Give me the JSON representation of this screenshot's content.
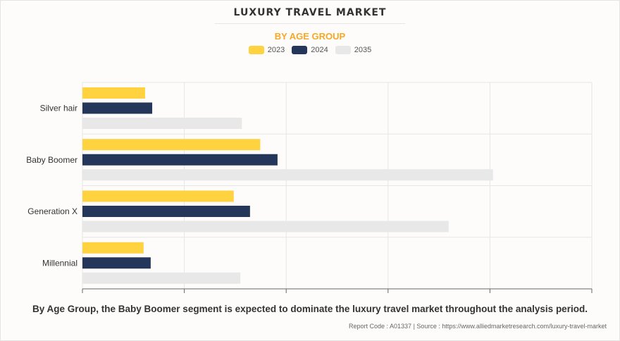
{
  "chart_data": {
    "type": "bar",
    "orientation": "horizontal",
    "title": "LUXURY TRAVEL MARKET",
    "subtitle": "BY AGE GROUP",
    "categories": [
      "Silver hair",
      "Baby Boomer",
      "Generation X",
      "Millennial"
    ],
    "series": [
      {
        "name": "2023",
        "color": "#ffd23f",
        "values": [
          12.3,
          34.9,
          29.7,
          12.0
        ]
      },
      {
        "name": "2024",
        "color": "#243659",
        "values": [
          13.7,
          38.3,
          32.9,
          13.4
        ]
      },
      {
        "name": "2035",
        "color": "#e8e8e8",
        "values": [
          31.3,
          80.6,
          71.9,
          31.0
        ]
      }
    ],
    "xlim": [
      0,
      100
    ],
    "x_ticks_unlabeled": [
      0,
      20,
      40,
      60,
      80,
      100
    ],
    "grid": true,
    "legend_position": "top-center",
    "xlabel": "",
    "ylabel": ""
  },
  "caption": "By Age Group, the Baby Boomer segment is expected to dominate the luxury travel market throughout the analysis period.",
  "source": "Report Code : A01337  |  Source : https://www.alliedmarketresearch.com/luxury-travel-market"
}
